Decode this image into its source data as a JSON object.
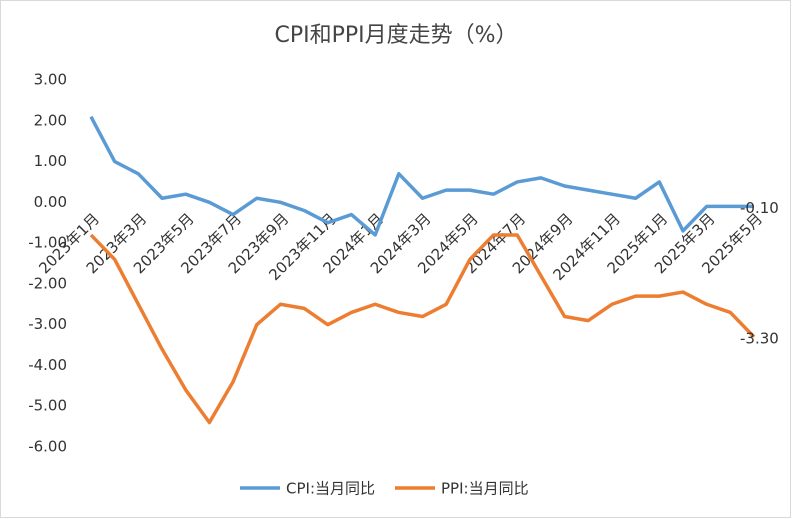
{
  "chart_data": {
    "type": "line",
    "title": "CPI和PPI月度走势（%）",
    "categories": [
      "2023年1月",
      null,
      "2023年3月",
      null,
      "2023年5月",
      null,
      "2023年7月",
      null,
      "2023年9月",
      null,
      "2023年11月",
      null,
      "2024年1月",
      null,
      "2024年3月",
      null,
      "2024年5月",
      null,
      "2024年7月",
      null,
      "2024年9月",
      null,
      "2024年11月",
      null,
      "2025年1月",
      null,
      "2025年3月",
      null,
      "2025年5月"
    ],
    "series": [
      {
        "name": "CPI:当月同比",
        "color": "#5b9bd5",
        "values": [
          2.1,
          1.0,
          0.7,
          0.1,
          0.2,
          0.0,
          -0.3,
          0.1,
          0.0,
          -0.2,
          -0.5,
          -0.3,
          -0.8,
          0.7,
          0.1,
          0.3,
          0.3,
          0.2,
          0.5,
          0.6,
          0.4,
          0.3,
          0.2,
          0.1,
          0.5,
          -0.7,
          -0.1,
          -0.1,
          -0.1
        ],
        "value_labels": [
          null,
          null,
          null,
          null,
          null,
          null,
          null,
          null,
          null,
          null,
          null,
          null,
          null,
          null,
          null,
          null,
          null,
          null,
          null,
          null,
          null,
          null,
          null,
          null,
          null,
          null,
          null,
          null,
          "-0.10"
        ]
      },
      {
        "name": "PPI:当月同比",
        "color": "#ed7d31",
        "values": [
          -0.8,
          -1.4,
          -2.5,
          -3.6,
          -4.6,
          -5.4,
          -4.4,
          -3.0,
          -2.5,
          -2.6,
          -3.0,
          -2.7,
          -2.5,
          -2.7,
          -2.8,
          -2.5,
          -1.4,
          -0.8,
          -0.8,
          -1.8,
          -2.8,
          -2.9,
          -2.5,
          -2.3,
          -2.3,
          -2.2,
          -2.5,
          -2.7,
          -3.3
        ],
        "value_labels": [
          null,
          null,
          null,
          null,
          null,
          null,
          null,
          null,
          null,
          null,
          null,
          null,
          null,
          null,
          null,
          null,
          null,
          null,
          null,
          null,
          null,
          null,
          null,
          null,
          null,
          null,
          null,
          null,
          "-3.30"
        ]
      }
    ],
    "ylim": [
      -6,
      3
    ],
    "yticks": [
      {
        "value": 3,
        "label": "3.00"
      },
      {
        "value": 2,
        "label": "2.00"
      },
      {
        "value": 1,
        "label": "1.00"
      },
      {
        "value": 0,
        "label": "0.00"
      },
      {
        "value": -1,
        "label": "-1.00"
      },
      {
        "value": -2,
        "label": "-2.00"
      },
      {
        "value": -3,
        "label": "-3.00"
      },
      {
        "value": -4,
        "label": "-4.00"
      },
      {
        "value": -5,
        "label": "-5.00"
      },
      {
        "value": -6,
        "label": "-6.00"
      }
    ],
    "legend": "bottom"
  }
}
